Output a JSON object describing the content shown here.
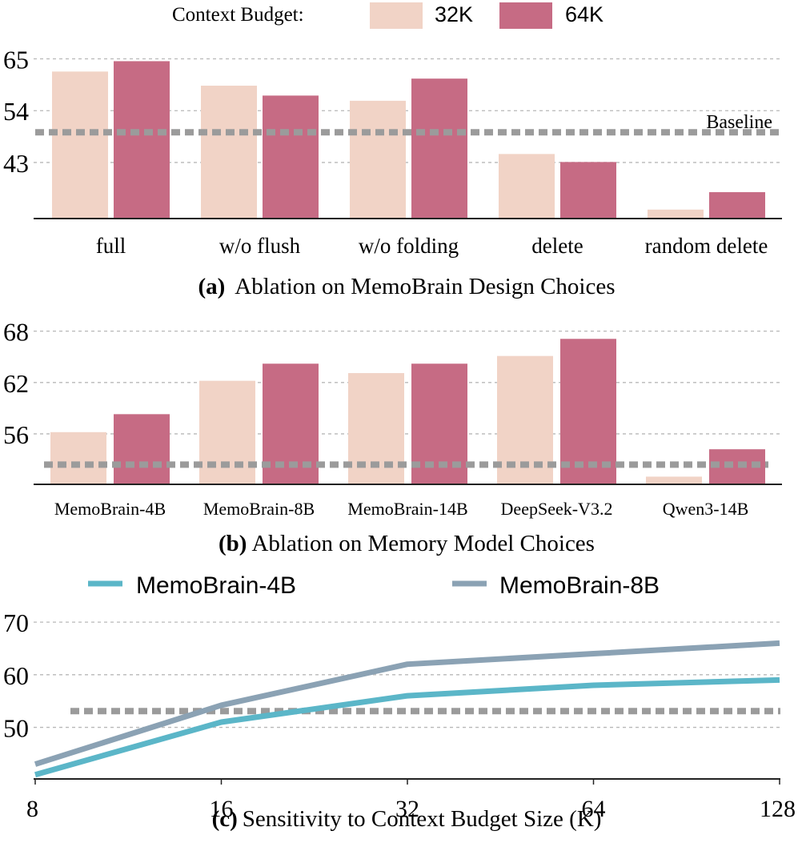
{
  "colors": {
    "c32": "#f1d3c6",
    "c64": "#c66b84",
    "m4b": "#5bb6c8",
    "m8b": "#8ba2b4",
    "baseline": "#9b9b9b"
  },
  "legend_top": {
    "title": "Context Budget:",
    "items": [
      "32K",
      "64K"
    ]
  },
  "chart_data": [
    {
      "type": "bar",
      "caption_tag": "(a)",
      "caption_text": "Ablation on MemoBrain Design Choices",
      "categories": [
        "full",
        "w/o flush",
        "w/o folding",
        "delete",
        "random delete"
      ],
      "series": [
        {
          "name": "32K",
          "values": [
            62.3,
            59.3,
            56.1,
            44.8,
            33.0
          ]
        },
        {
          "name": "64K",
          "values": [
            64.5,
            57.2,
            60.8,
            43.1,
            36.7
          ]
        }
      ],
      "yticks": [
        "43",
        "54",
        "65"
      ],
      "ylim": [
        31.1,
        67.8
      ],
      "baseline": {
        "label": "Baseline",
        "value": 49.4
      },
      "grid": true
    },
    {
      "type": "bar",
      "caption_tag": "(b)",
      "caption_text": "Ablation on Memory Model Choices",
      "categories": [
        "MemoBrain-4B",
        "MemoBrain-8B",
        "MemoBrain-14B",
        "DeepSeek-V3.2",
        "Qwen3-14B"
      ],
      "series": [
        {
          "name": "32K",
          "values": [
            56.2,
            62.2,
            63.1,
            65.1,
            51.0
          ]
        },
        {
          "name": "64K",
          "values": [
            58.3,
            64.2,
            64.2,
            67.1,
            54.2
          ]
        }
      ],
      "yticks": [
        "56",
        "62",
        "68"
      ],
      "ylim": [
        50.1,
        70.4
      ],
      "baseline": {
        "value": 52.4
      },
      "grid": true
    },
    {
      "type": "line",
      "caption_tag": "(c)",
      "caption_text": "Sensitivity to Context Budget Size (K)",
      "x": [
        "8",
        "16",
        "32",
        "64",
        "128"
      ],
      "series": [
        {
          "name": "MemoBrain-4B",
          "values": [
            41.0,
            51.0,
            56.0,
            58.0,
            59.0
          ]
        },
        {
          "name": "MemoBrain-8B",
          "values": [
            43.0,
            54.2,
            62.0,
            64.0,
            66.0
          ]
        }
      ],
      "yticks": [
        "50",
        "60",
        "70"
      ],
      "ylim": [
        40.2,
        72.6
      ],
      "baseline": {
        "value": 53.1
      },
      "grid": true,
      "legend": "top"
    }
  ]
}
